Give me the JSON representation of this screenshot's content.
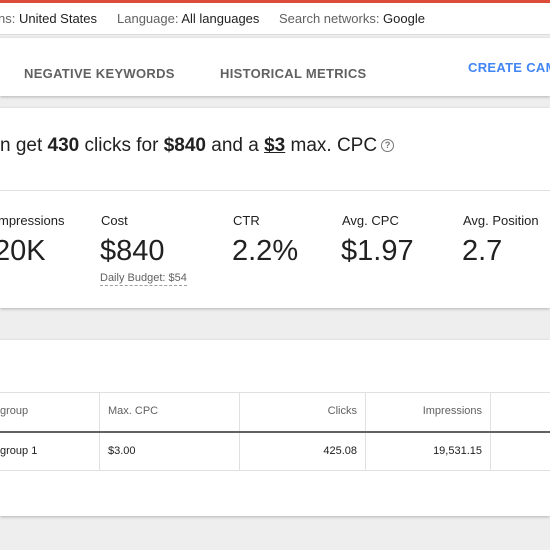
{
  "colors": {
    "accent_bar": "#dd4b39",
    "link": "#4285f4",
    "text": "#212121",
    "muted": "#616161",
    "background": "#eeeeee"
  },
  "filters": {
    "location_key": "ns: ",
    "location_value": "United States",
    "language_key": "Language: ",
    "language_value": "All languages",
    "networks_key": "Search networks: ",
    "networks_value": "Google"
  },
  "tabs": {
    "negative_keywords": "NEGATIVE KEYWORDS",
    "historical_metrics": "HISTORICAL METRICS",
    "create_campaign": "CREATE CAMP"
  },
  "summary": {
    "prefix": "n get ",
    "clicks": "430",
    "mid1": " clicks for ",
    "cost": "$840",
    "mid2": " and a ",
    "max_cpc": "$3",
    "suffix": " max. CPC",
    "help_icon": "help-circle-icon"
  },
  "metrics": {
    "impressions_label": "mpressions",
    "impressions_value": "20K",
    "cost_label": "Cost",
    "cost_value": "$840",
    "daily_budget": "Daily Budget: $54",
    "ctr_label": "CTR",
    "ctr_value": "2.2%",
    "avg_cpc_label": "Avg. CPC",
    "avg_cpc_value": "$1.97",
    "avg_position_label": "Avg. Position",
    "avg_position_value": "2.7"
  },
  "table": {
    "headers": [
      "group",
      "Max. CPC",
      "Clicks",
      "Impressions"
    ],
    "rows": [
      [
        "group 1",
        "$3.00",
        "425.08",
        "19,531.15"
      ]
    ]
  }
}
